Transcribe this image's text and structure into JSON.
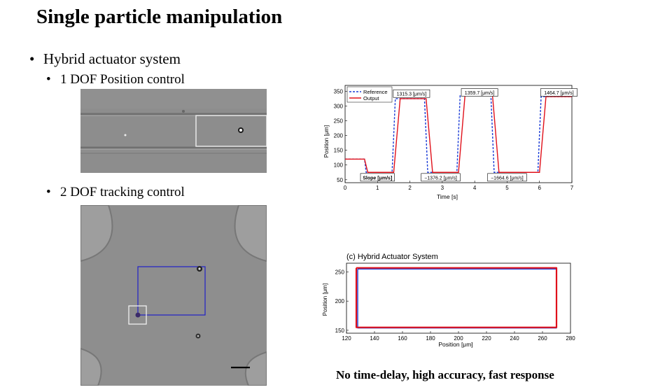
{
  "slide": {
    "title": "Single particle manipulation",
    "bullet_main": "Hybrid actuator system",
    "bullet_sub1": "1 DOF Position control",
    "bullet_sub2": "2 DOF tracking control",
    "caption": "No time-delay, high accuracy, fast response"
  },
  "chart_data": [
    {
      "type": "line",
      "xlabel": "Time [s]",
      "ylabel": "Position [μm]",
      "xlim": [
        0,
        7
      ],
      "ylim": [
        40,
        370
      ],
      "xticks": [
        0,
        1,
        2,
        3,
        4,
        5,
        6,
        7
      ],
      "yticks": [
        50,
        100,
        150,
        200,
        250,
        300,
        350
      ],
      "legend": [
        "Reference",
        "Output"
      ],
      "legend_position": "top-left",
      "series": [
        {
          "name": "Reference",
          "color": "#1a3bd6",
          "style": "dashed",
          "x": [
            0,
            0.6,
            0.65,
            1.45,
            1.55,
            2.45,
            2.55,
            3.45,
            3.55,
            4.5,
            4.6,
            5.95,
            6.05,
            7
          ],
          "y": [
            120,
            120,
            75,
            75,
            325,
            325,
            75,
            75,
            335,
            335,
            75,
            75,
            332,
            332
          ]
        },
        {
          "name": "Output",
          "color": "#e0101a",
          "style": "solid",
          "x": [
            0,
            0.6,
            0.7,
            1.5,
            1.7,
            2.5,
            2.7,
            3.5,
            3.7,
            4.55,
            4.75,
            6.0,
            6.2,
            7
          ],
          "y": [
            120,
            120,
            75,
            75,
            325,
            325,
            75,
            75,
            335,
            335,
            75,
            75,
            332,
            332
          ]
        }
      ],
      "annotations": [
        "Slope [μm/s]",
        "1315.3 [μm/s]",
        "−1376.2 [μm/s]",
        "1359.7 [μm/s]",
        "−1664.6 [μm/s]",
        "1464.7 [μm/s]"
      ]
    },
    {
      "type": "line",
      "title": "(c) Hybrid Actuator System",
      "xlabel": "Position [μm]",
      "ylabel": "Position [μm]",
      "xlim": [
        120,
        280
      ],
      "ylim": [
        145,
        265
      ],
      "xticks": [
        120,
        140,
        160,
        180,
        200,
        220,
        240,
        260,
        280
      ],
      "yticks": [
        150,
        200,
        250
      ],
      "series": [
        {
          "name": "Reference",
          "color": "#1a3bd6",
          "x": [
            128,
            270,
            270,
            128,
            128
          ],
          "y": [
            255,
            255,
            154,
            154,
            255
          ]
        },
        {
          "name": "Output",
          "color": "#e0101a",
          "x": [
            127,
            270,
            270,
            127,
            127
          ],
          "y": [
            257,
            257,
            155,
            155,
            257
          ]
        }
      ]
    }
  ]
}
